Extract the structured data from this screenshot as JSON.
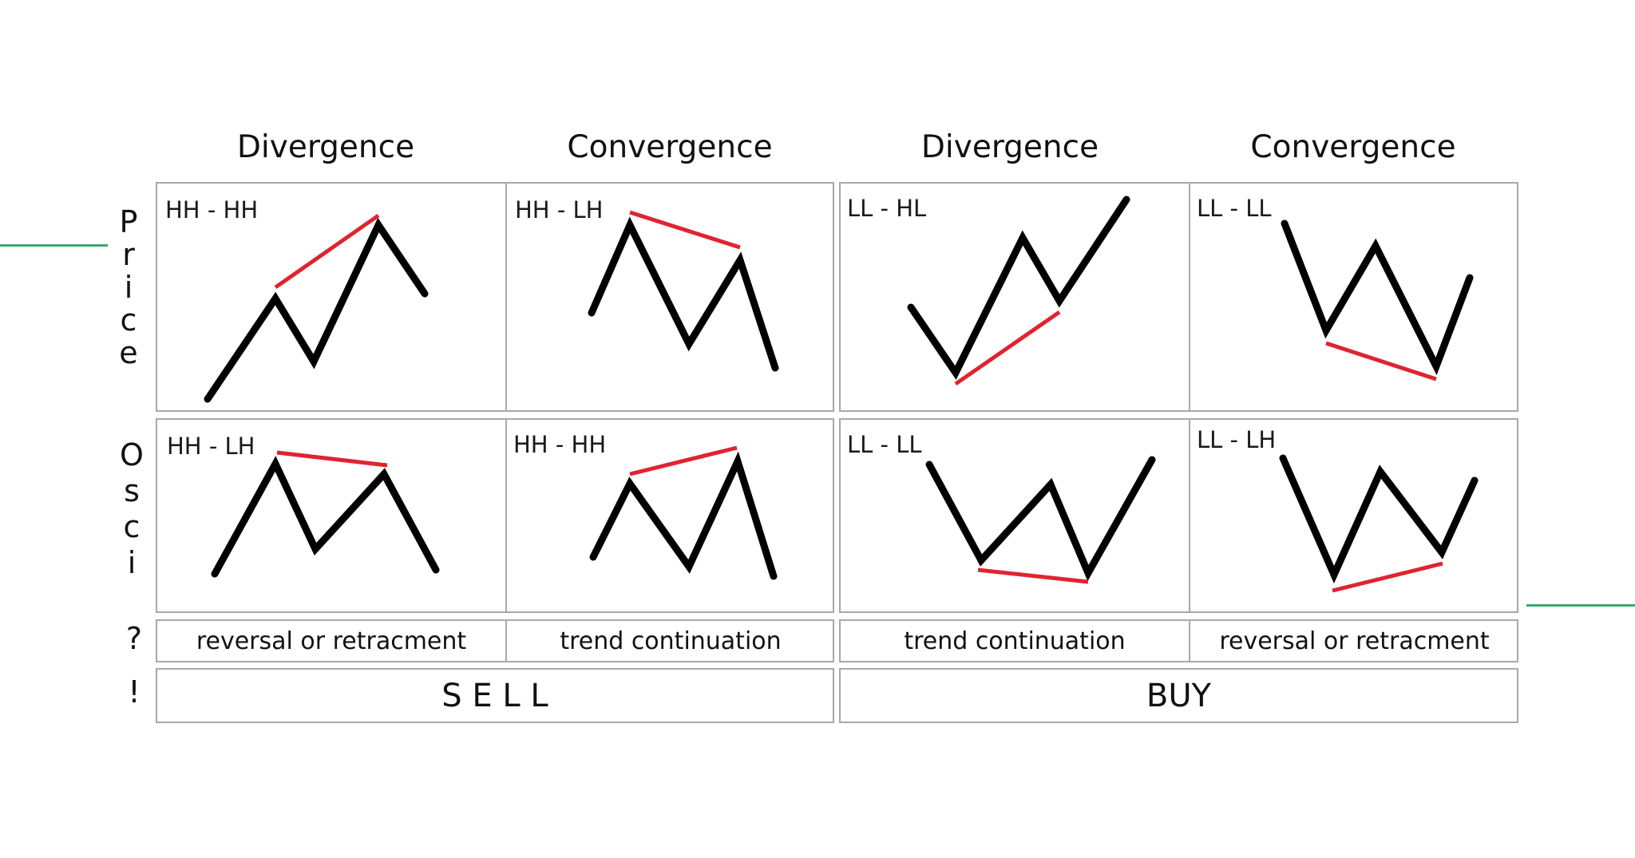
{
  "colors": {
    "price_line": "#000000",
    "trend_line": "#e0242f",
    "grid": "#a8a8a8",
    "accent": "#3aaa6e"
  },
  "column_headers": [
    "Divergence",
    "Convergence",
    "Divergence",
    "Convergence"
  ],
  "row_labels": {
    "price": "P\nr\ni\nc\ne",
    "osci": "O\ns\nc\ni",
    "question": "?",
    "action": "!"
  },
  "price_row": [
    {
      "label": "HH - HH"
    },
    {
      "label": "HH - LH"
    },
    {
      "label": "LL - HL"
    },
    {
      "label": "LL - LL"
    }
  ],
  "osci_row": [
    {
      "label": "HH - LH"
    },
    {
      "label": "HH - HH"
    },
    {
      "label": "LL - LL"
    },
    {
      "label": "LL - LH"
    }
  ],
  "meaning_row": [
    "reversal or retracment",
    "trend continuation",
    "trend continuation",
    "reversal or retracment"
  ],
  "actions": {
    "sell": "S E L L",
    "buy": "BUY"
  }
}
